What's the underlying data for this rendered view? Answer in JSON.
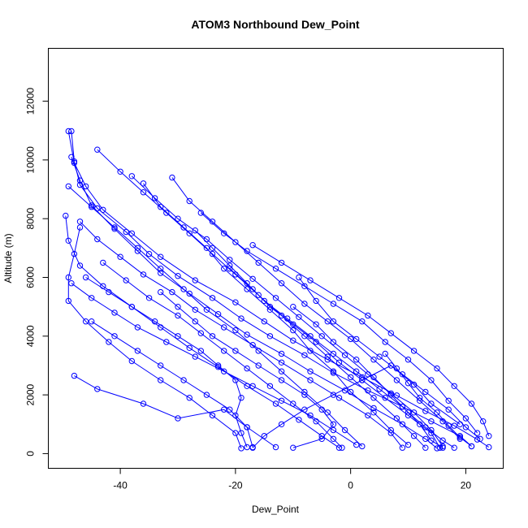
{
  "chart_data": {
    "type": "line",
    "title": "ATOM3 Northbound Dew_Point",
    "xlabel": "Dew_Point",
    "ylabel": "Altitude (m)",
    "xlim": [
      -52.5,
      26.5
    ],
    "ylim": [
      -500,
      13800
    ],
    "xticks": [
      -40,
      -20,
      0,
      20
    ],
    "yticks": [
      0,
      2000,
      4000,
      6000,
      8000,
      10000,
      12000
    ],
    "grid": false,
    "legend": "none",
    "color": "#0000ff",
    "series": [
      {
        "values": [
          [
            24,
            220
          ],
          [
            22,
            480
          ],
          [
            18,
            950
          ],
          [
            13,
            1450
          ],
          [
            8,
            1980
          ],
          [
            2,
            2600
          ],
          [
            -4,
            3200
          ],
          [
            -10,
            3850
          ],
          [
            -15,
            4500
          ],
          [
            -20,
            5150
          ],
          [
            -27,
            5900
          ],
          [
            -33,
            6700
          ],
          [
            -38,
            7500
          ],
          [
            -43,
            8300
          ],
          [
            -46,
            9100
          ],
          [
            -48,
            9900
          ],
          [
            -49,
            10980
          ]
        ]
      },
      {
        "values": [
          [
            21,
            250
          ],
          [
            19,
            600
          ],
          [
            14,
            1100
          ],
          [
            9,
            1600
          ],
          [
            3,
            2150
          ],
          [
            -3,
            2750
          ],
          [
            -8,
            3350
          ],
          [
            -14,
            4000
          ],
          [
            -19,
            4600
          ],
          [
            -24,
            5300
          ],
          [
            -30,
            6050
          ],
          [
            -35,
            6800
          ],
          [
            -39,
            7550
          ],
          [
            -44,
            8350
          ],
          [
            -47,
            9150
          ],
          [
            -48,
            9950
          ],
          [
            -48.5,
            10980
          ]
        ]
      },
      {
        "values": [
          [
            15,
            180
          ],
          [
            13,
            500
          ],
          [
            9,
            1000
          ],
          [
            4,
            1550
          ],
          [
            -1,
            2150
          ],
          [
            -7,
            2800
          ],
          [
            -12,
            3400
          ],
          [
            -18,
            4050
          ],
          [
            -23,
            4750
          ],
          [
            -28,
            5450
          ],
          [
            -33,
            6150
          ],
          [
            -37,
            6900
          ],
          [
            -41,
            7650
          ],
          [
            -45,
            8450
          ],
          [
            -47,
            9300
          ],
          [
            -48.5,
            10100
          ]
        ]
      },
      {
        "values": [
          [
            -2,
            200
          ],
          [
            -5,
            600
          ],
          [
            -9,
            1150
          ],
          [
            -13,
            1700
          ],
          [
            -18,
            2300
          ],
          [
            -23,
            2950
          ],
          [
            -28,
            3600
          ],
          [
            -33,
            4300
          ],
          [
            -38,
            5000
          ],
          [
            -43,
            5700
          ],
          [
            -47,
            6400
          ],
          [
            -49,
            7250
          ],
          [
            -49.5,
            8100
          ]
        ]
      },
      {
        "values": [
          [
            -19,
            180
          ],
          [
            -20,
            700
          ],
          [
            -24,
            1300
          ],
          [
            -28,
            1900
          ],
          [
            -33,
            2500
          ],
          [
            -38,
            3150
          ],
          [
            -42,
            3800
          ],
          [
            -46,
            4500
          ],
          [
            -49,
            5200
          ],
          [
            -49,
            6000
          ],
          [
            -48,
            6800
          ],
          [
            -47,
            7700
          ]
        ]
      },
      {
        "values": [
          [
            -17,
            200
          ],
          [
            -15,
            600
          ],
          [
            -12,
            1000
          ],
          [
            -8,
            1500
          ],
          [
            -3,
            2000
          ],
          [
            2,
            2500
          ],
          [
            7,
            3000
          ],
          [
            11,
            2350
          ],
          [
            14,
            1700
          ],
          [
            19,
            1000
          ]
        ]
      },
      {
        "values": [
          [
            -13,
            220
          ],
          [
            -18,
            900
          ],
          [
            -22,
            1500
          ],
          [
            -30,
            1200
          ],
          [
            -36,
            1700
          ],
          [
            -44,
            2200
          ],
          [
            -48,
            2650
          ]
        ]
      },
      {
        "values": [
          [
            -9,
            6000
          ],
          [
            -6,
            5200
          ],
          [
            -3,
            4500
          ],
          [
            1,
            3900
          ],
          [
            5,
            3300
          ],
          [
            9,
            2700
          ],
          [
            13,
            2100
          ],
          [
            17,
            1500
          ],
          [
            20,
            900
          ],
          [
            22.5,
            500
          ]
        ]
      },
      {
        "values": [
          [
            -17,
            7100
          ],
          [
            -12,
            6500
          ],
          [
            -7,
            5900
          ],
          [
            -2,
            5300
          ],
          [
            3,
            4700
          ],
          [
            7,
            4100
          ],
          [
            11,
            3500
          ],
          [
            15,
            2900
          ],
          [
            18,
            2300
          ],
          [
            21,
            1700
          ],
          [
            23,
            1100
          ],
          [
            24,
            600
          ]
        ]
      },
      {
        "values": [
          [
            -26,
            8200
          ],
          [
            -22,
            7500
          ],
          [
            -18,
            6900
          ],
          [
            -13,
            6300
          ],
          [
            -8,
            5700
          ],
          [
            -3,
            5100
          ],
          [
            2,
            4500
          ],
          [
            6,
            3800
          ],
          [
            10,
            3200
          ],
          [
            14,
            2500
          ],
          [
            17,
            1800
          ],
          [
            20,
            1200
          ],
          [
            22,
            700
          ]
        ]
      },
      {
        "values": [
          [
            -31,
            9400
          ],
          [
            -28,
            8600
          ],
          [
            -24,
            7900
          ],
          [
            -20,
            7200
          ],
          [
            -16,
            6500
          ],
          [
            -12,
            5800
          ],
          [
            -8,
            5100
          ],
          [
            -4,
            4500
          ],
          [
            0,
            3900
          ],
          [
            4,
            3200
          ],
          [
            8,
            2500
          ],
          [
            12,
            1800
          ],
          [
            16,
            1100
          ],
          [
            19,
            500
          ]
        ]
      },
      {
        "values": [
          [
            -44,
            10350
          ],
          [
            -40,
            9600
          ],
          [
            -36,
            8900
          ],
          [
            -32,
            8200
          ],
          [
            -28,
            7500
          ],
          [
            -24,
            6800
          ],
          [
            -20,
            6100
          ],
          [
            -16,
            5400
          ],
          [
            -12,
            4700
          ],
          [
            -8,
            4000
          ],
          [
            -4,
            3300
          ],
          [
            0,
            2600
          ],
          [
            4,
            1900
          ],
          [
            8,
            1200
          ],
          [
            11,
            600
          ],
          [
            13,
            200
          ]
        ]
      },
      {
        "values": [
          [
            -38,
            9450
          ],
          [
            -34,
            8700
          ],
          [
            -30,
            8000
          ],
          [
            -25,
            7300
          ],
          [
            -21,
            6600
          ],
          [
            -17,
            5950
          ],
          [
            -13,
            5300
          ],
          [
            -9,
            4650
          ],
          [
            -5,
            4000
          ],
          [
            -1,
            3350
          ],
          [
            3,
            2700
          ],
          [
            7,
            2050
          ],
          [
            11,
            1400
          ],
          [
            14,
            800
          ],
          [
            16,
            250
          ]
        ]
      },
      {
        "values": [
          [
            -47,
            7900
          ],
          [
            -44,
            7300
          ],
          [
            -40,
            6700
          ],
          [
            -36,
            6100
          ],
          [
            -31,
            5500
          ],
          [
            -27,
            4900
          ],
          [
            -22,
            4300
          ],
          [
            -17,
            3700
          ],
          [
            -12,
            3100
          ],
          [
            -7,
            2500
          ],
          [
            -2,
            1900
          ],
          [
            3,
            1300
          ],
          [
            7,
            700
          ],
          [
            9,
            200
          ]
        ]
      },
      {
        "values": [
          [
            -48.5,
            5800
          ],
          [
            -45,
            5300
          ],
          [
            -41,
            4800
          ],
          [
            -37,
            4300
          ],
          [
            -32,
            3800
          ],
          [
            -27,
            3300
          ],
          [
            -22,
            2800
          ],
          [
            -17,
            2300
          ],
          [
            -12,
            1800
          ],
          [
            -7,
            1300
          ],
          [
            -3,
            800
          ],
          [
            1,
            300
          ]
        ]
      },
      {
        "values": [
          [
            -45,
            4500
          ],
          [
            -41,
            4000
          ],
          [
            -37,
            3500
          ],
          [
            -33,
            3000
          ],
          [
            -29,
            2500
          ],
          [
            -25,
            2000
          ],
          [
            -21,
            1500
          ],
          [
            -18,
            900
          ],
          [
            -17,
            220
          ]
        ]
      },
      {
        "values": [
          [
            -10,
            5000
          ],
          [
            -6,
            4400
          ],
          [
            -3,
            3800
          ],
          [
            1,
            3200
          ],
          [
            4,
            2600
          ],
          [
            7,
            2000
          ],
          [
            10,
            1400
          ],
          [
            13,
            900
          ],
          [
            16,
            450
          ],
          [
            18,
            200
          ]
        ]
      },
      {
        "values": [
          [
            -21,
            6300
          ],
          [
            -17,
            5600
          ],
          [
            -14,
            5000
          ],
          [
            -10,
            4400
          ],
          [
            -6,
            3800
          ],
          [
            -2,
            3100
          ],
          [
            2,
            2500
          ],
          [
            6,
            1900
          ],
          [
            10,
            1300
          ],
          [
            14,
            700
          ],
          [
            15.5,
            200
          ]
        ]
      },
      {
        "values": [
          [
            -36,
            9200
          ],
          [
            -33,
            8400
          ],
          [
            -29,
            7700
          ],
          [
            -25,
            7000
          ],
          [
            -22,
            6300
          ],
          [
            -18,
            5600
          ],
          [
            -14,
            4900
          ],
          [
            -10,
            4200
          ],
          [
            -7,
            3500
          ],
          [
            -3,
            2800
          ],
          [
            0,
            2100
          ],
          [
            4,
            1400
          ],
          [
            7,
            800
          ],
          [
            10,
            300
          ]
        ]
      },
      {
        "values": [
          [
            -49,
            9100
          ],
          [
            -45,
            8400
          ],
          [
            -41,
            7700
          ],
          [
            -37,
            7000
          ],
          [
            -33,
            6300
          ],
          [
            -29,
            5600
          ],
          [
            -25,
            4900
          ],
          [
            -20,
            4200
          ],
          [
            -16,
            3500
          ],
          [
            -12,
            2800
          ],
          [
            -8,
            2100
          ],
          [
            -4,
            1400
          ],
          [
            -1,
            800
          ],
          [
            2,
            250
          ]
        ]
      },
      {
        "values": [
          [
            -43,
            6500
          ],
          [
            -39,
            5900
          ],
          [
            -35,
            5300
          ],
          [
            -30,
            4700
          ],
          [
            -26,
            4100
          ],
          [
            -22,
            3500
          ],
          [
            -18,
            2900
          ],
          [
            -14,
            2300
          ],
          [
            -10,
            1700
          ],
          [
            -6,
            1100
          ],
          [
            -3,
            500
          ],
          [
            -1.5,
            200
          ]
        ]
      },
      {
        "values": [
          [
            -27,
            7600
          ],
          [
            -24,
            7000
          ],
          [
            -21,
            6400
          ],
          [
            -18,
            5800
          ],
          [
            -15,
            5200
          ],
          [
            -11,
            4600
          ],
          [
            -7,
            4000
          ],
          [
            -3,
            3400
          ],
          [
            1,
            2800
          ],
          [
            5,
            2200
          ],
          [
            9,
            1600
          ],
          [
            12,
            1000
          ],
          [
            14,
            450
          ],
          [
            16,
            200
          ]
        ]
      },
      {
        "values": [
          [
            -46,
            6000
          ],
          [
            -42,
            5500
          ],
          [
            -38,
            5000
          ],
          [
            -34,
            4500
          ],
          [
            -30,
            4000
          ],
          [
            -26,
            3500
          ],
          [
            -23,
            3000
          ],
          [
            -20,
            2500
          ],
          [
            -19,
            1900
          ],
          [
            -20,
            1300
          ],
          [
            -19,
            700
          ],
          [
            -18,
            220
          ]
        ]
      },
      {
        "values": [
          [
            -33,
            5500
          ],
          [
            -30,
            5000
          ],
          [
            -27,
            4500
          ],
          [
            -24,
            4000
          ],
          [
            -20,
            3500
          ],
          [
            -16,
            3000
          ],
          [
            -12,
            2500
          ],
          [
            -8,
            2000
          ],
          [
            -5,
            1500
          ],
          [
            -3,
            1000
          ],
          [
            -5,
            500
          ],
          [
            -10,
            200
          ]
        ]
      },
      {
        "values": [
          [
            6,
            3400
          ],
          [
            8,
            2900
          ],
          [
            10,
            2400
          ],
          [
            12,
            1900
          ],
          [
            15,
            1400
          ],
          [
            17,
            950
          ],
          [
            19,
            550
          ],
          [
            21,
            250
          ]
        ]
      }
    ]
  }
}
